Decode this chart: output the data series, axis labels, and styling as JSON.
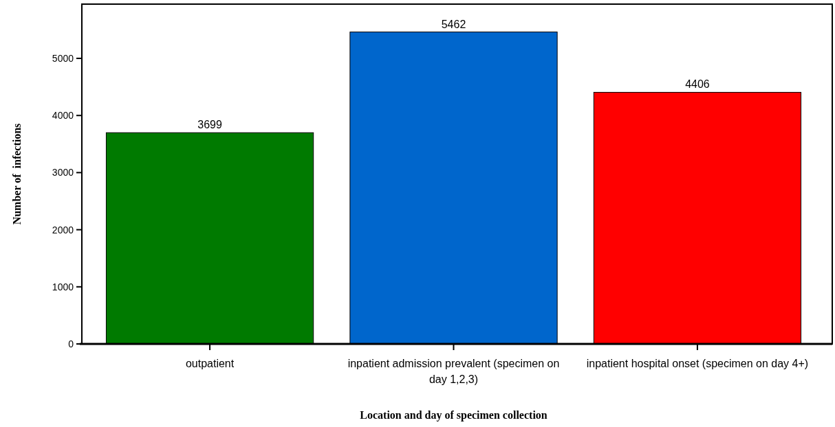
{
  "chart_data": {
    "type": "bar",
    "xlabel": "Location and day of specimen collection",
    "ylabel": "Number of  infections",
    "categories": [
      "outpatient",
      "inpatient admission prevalent (specimen on day 1,2,3)",
      "inpatient hospital onset (specimen on day 4+)"
    ],
    "values": [
      3699,
      5462,
      4406
    ],
    "colors": [
      "#007a00",
      "#0066cc",
      "#ff0000"
    ],
    "ylim": [
      0,
      5950
    ],
    "yticks": [
      0,
      1000,
      2000,
      3000,
      4000,
      5000
    ],
    "data_labels": true
  }
}
